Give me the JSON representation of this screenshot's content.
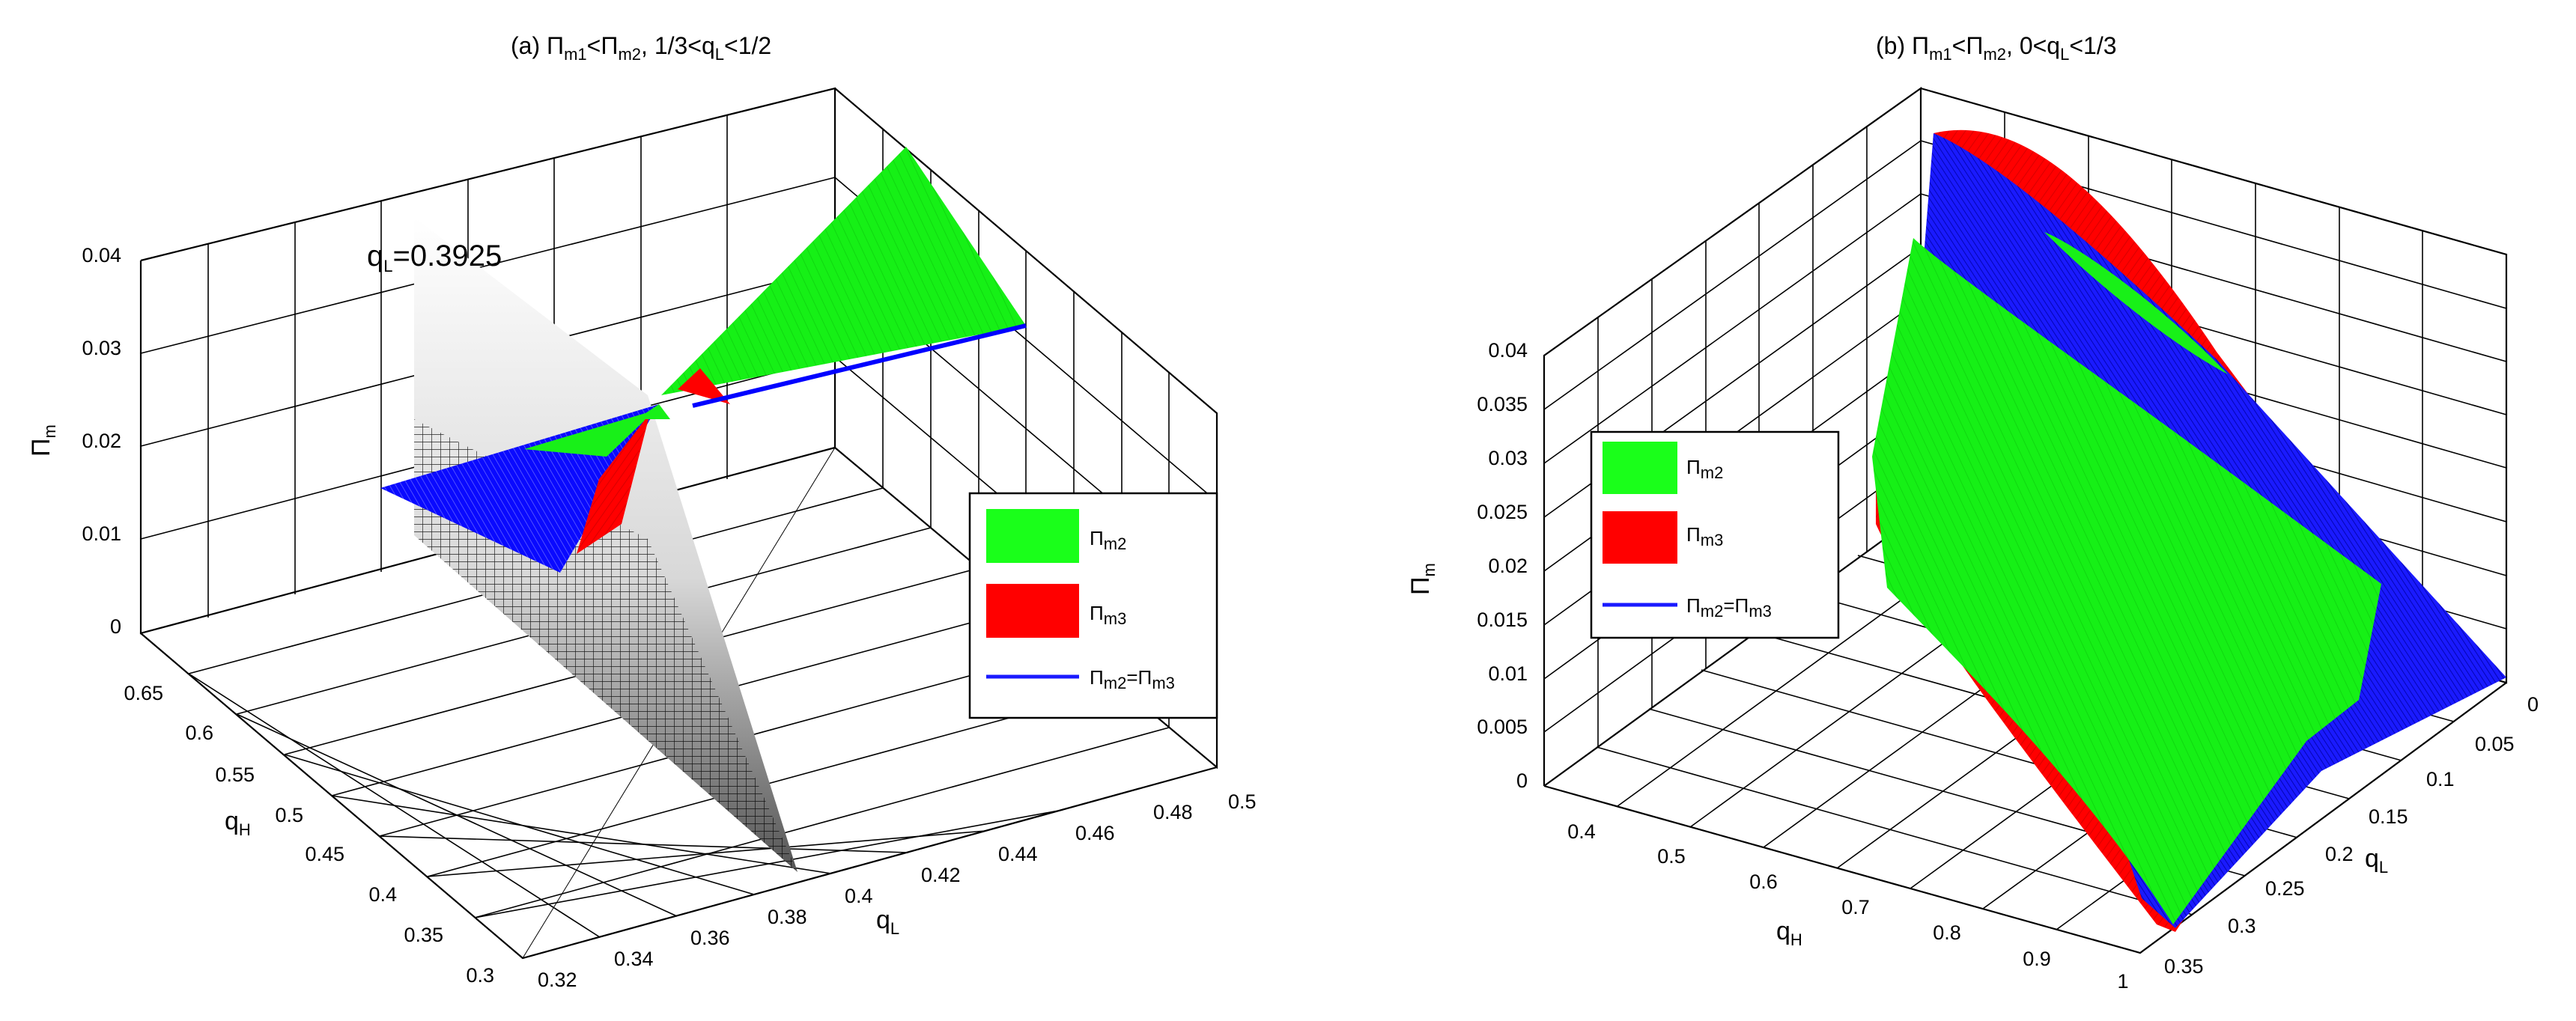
{
  "chart_data": [
    {
      "type": "surface3d",
      "title": {
        "a": "(a) ",
        "b": "Π",
        "c": "m1",
        "d": "<Π",
        "e": "m2",
        "f": ", 1/3<q",
        "g": "L",
        "h": "<1/2"
      },
      "xlabel": {
        "main": "q",
        "sub": "L"
      },
      "ylabel": {
        "main": "q",
        "sub": "H"
      },
      "zlabel": {
        "main": "Π",
        "sub": "m"
      },
      "x_ticks": [
        "0.32",
        "0.34",
        "0.36",
        "0.38",
        "0.4",
        "0.42",
        "0.44",
        "0.46",
        "0.48",
        "0.5"
      ],
      "y_ticks": [
        "0.3",
        "0.35",
        "0.4",
        "0.45",
        "0.5",
        "0.55",
        "0.6",
        "0.65"
      ],
      "z_ticks": [
        "0",
        "0.01",
        "0.02",
        "0.03",
        "0.04"
      ],
      "xlim": [
        0.32,
        0.5
      ],
      "ylim": [
        0.3,
        0.65
      ],
      "zlim": [
        0,
        0.04
      ],
      "grid": true,
      "annotation": {
        "main": "q",
        "sub": "L",
        "rest": "=0.3925"
      },
      "plane_q_L": 0.3925,
      "legend": {
        "position": "right",
        "items": [
          {
            "main": "Π",
            "sub": "m2",
            "color": "#00ff00"
          },
          {
            "main": "Π",
            "sub": "m3",
            "color": "#ff0000"
          },
          {
            "main": "Π",
            "sub": "m2",
            "mid": "=Π",
            "sub2": "m3",
            "color": "#0000ff"
          }
        ]
      },
      "series": [
        {
          "name": "Π_m2",
          "color": "#00ff00"
        },
        {
          "name": "Π_m3",
          "color": "#ff0000"
        },
        {
          "name": "Π_m2=Π_m3",
          "color": "#0000ff"
        }
      ]
    },
    {
      "type": "surface3d",
      "title": {
        "a": "(b) ",
        "b": "Π",
        "c": "m1",
        "d": "<Π",
        "e": "m2",
        "f": ", 0<q",
        "g": "L",
        "h": "<1/3"
      },
      "xlabel": {
        "main": "q",
        "sub": "L"
      },
      "ylabel": {
        "main": "q",
        "sub": "H"
      },
      "zlabel": {
        "main": "Π",
        "sub": "m"
      },
      "x_ticks": [
        "0",
        "0.05",
        "0.1",
        "0.15",
        "0.2",
        "0.25",
        "0.3",
        "0.35"
      ],
      "y_ticks": [
        "0.4",
        "0.5",
        "0.6",
        "0.7",
        "0.8",
        "0.9",
        "1"
      ],
      "z_ticks": [
        "0",
        "0.005",
        "0.01",
        "0.015",
        "0.02",
        "0.025",
        "0.03",
        "0.035",
        "0.04"
      ],
      "xlim": [
        0,
        0.35
      ],
      "ylim": [
        0.35,
        1
      ],
      "zlim": [
        0,
        0.04
      ],
      "grid": true,
      "legend": {
        "position": "left",
        "items": [
          {
            "main": "Π",
            "sub": "m2",
            "color": "#00ff00"
          },
          {
            "main": "Π",
            "sub": "m3",
            "color": "#ff0000"
          },
          {
            "main": "Π",
            "sub": "m2",
            "mid": "=Π",
            "sub2": "m3",
            "color": "#0000ff"
          }
        ]
      },
      "series": [
        {
          "name": "Π_m2",
          "color": "#00ff00"
        },
        {
          "name": "Π_m3",
          "color": "#ff0000"
        },
        {
          "name": "Π_m2=Π_m3",
          "color": "#0000ff"
        }
      ]
    }
  ]
}
